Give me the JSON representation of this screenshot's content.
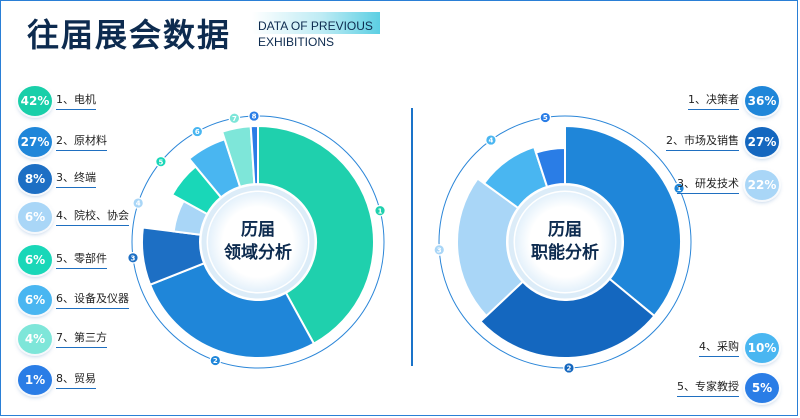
{
  "header": {
    "title": "往届展会数据",
    "subtitle_line1": "DATA OF PREVIOUS",
    "subtitle_line2": "EXHIBITIONS"
  },
  "colors": {
    "teal_green": "#1fd0ad",
    "blue": "#1f86d9",
    "light_blue": "#a9d6f7",
    "aqua": "#19d7b8",
    "sky": "#49b6f1",
    "mint": "#7ee6d9",
    "royal": "#2a7de6",
    "navy": "#1467bf",
    "pale": "#bfe0fa",
    "border": "#2a7fd6"
  },
  "chart_data": [
    {
      "type": "pie",
      "title": "历届领域分析",
      "title_line1": "历届",
      "title_line2": "领域分析",
      "categories": [
        "电机",
        "原材料",
        "终端",
        "院校、协会",
        "零部件",
        "设备及仪器",
        "第三方",
        "贸易"
      ],
      "values": [
        42,
        27,
        8,
        6,
        6,
        6,
        4,
        1
      ],
      "labels": [
        "1、电机",
        "2、原材料",
        "3、终端",
        "4、院校、协会",
        "5、零部件",
        "6、设备及仪器",
        "7、第三方",
        "8、贸易"
      ],
      "pct_labels": [
        "42%",
        "27%",
        "8%",
        "6%",
        "6%",
        "6%",
        "4%",
        "1%"
      ],
      "slice_numbers": [
        "1",
        "2",
        "3",
        "4",
        "5",
        "6",
        "7",
        "8"
      ],
      "colors": [
        "#1fd0ad",
        "#1f86d9",
        "#1d6fc4",
        "#a9d6f7",
        "#19d7b8",
        "#49b6f1",
        "#7ee6d9",
        "#2a7de6"
      ],
      "badge_colors": [
        "#19cfa9",
        "#1f86d9",
        "#1d6fc4",
        "#a9d6f7",
        "#19d7b8",
        "#49b6f1",
        "#7ee6d9",
        "#2a7de6"
      ],
      "legend_position": "left"
    },
    {
      "type": "pie",
      "title": "历届职能分析",
      "title_line1": "历届",
      "title_line2": "职能分析",
      "categories": [
        "决策者",
        "市场及销售",
        "研发技术",
        "采购",
        "专家教授"
      ],
      "values": [
        36,
        27,
        22,
        10,
        5
      ],
      "labels": [
        "1、决策者",
        "2、市场及销售",
        "3、研发技术",
        "4、采购",
        "5、专家教授"
      ],
      "pct_labels": [
        "36%",
        "27%",
        "22%",
        "10%",
        "5%"
      ],
      "slice_numbers": [
        "1",
        "2",
        "3",
        "4",
        "5"
      ],
      "colors": [
        "#1f86d9",
        "#1467bf",
        "#a9d6f7",
        "#49b6f1",
        "#2a7de6"
      ],
      "badge_colors": [
        "#1f86d9",
        "#1467bf",
        "#a9d6f7",
        "#49b6f1",
        "#2a7de6"
      ],
      "legend_position": "right"
    }
  ]
}
